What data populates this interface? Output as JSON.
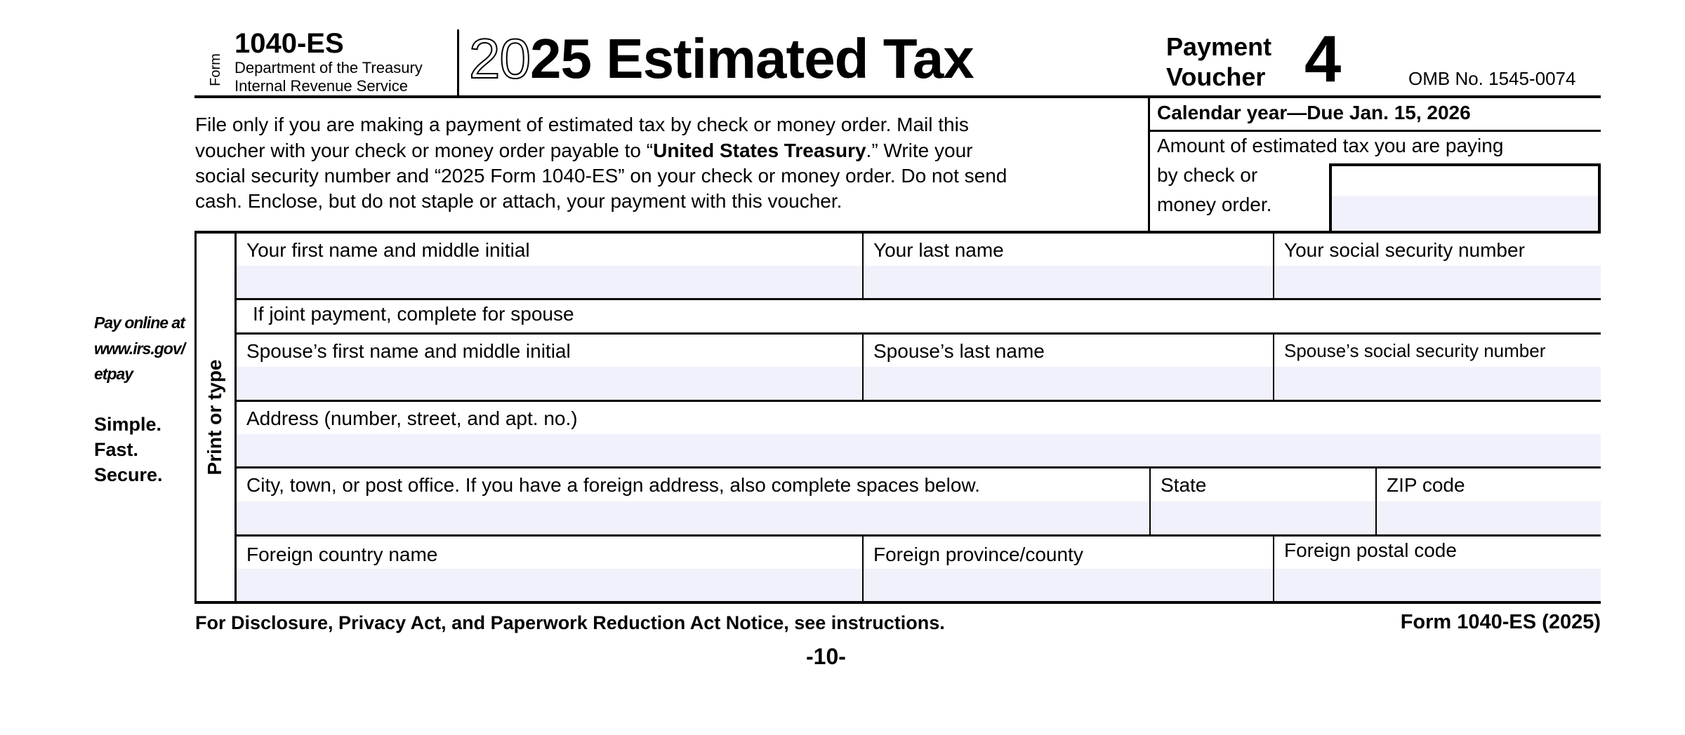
{
  "header": {
    "form_word": "Form",
    "form_number": "1040-ES",
    "department": "Department of the Treasury",
    "agency": "Internal Revenue Service",
    "title_year_outline": "20",
    "title_year_bold": "25",
    "title_text": "Estimated Tax",
    "voucher_line1": "Payment",
    "voucher_line2": "Voucher",
    "voucher_number": "4",
    "omb": "OMB No. 1545-0074"
  },
  "instructions": {
    "line1": "File only if you are making a payment of estimated tax by check or money order. Mail this",
    "line2_pre": "voucher with your check or money order payable to “",
    "line2_bold": "United States Treasury",
    "line2_post": ".” Write your",
    "line3": "social security number and “2025 Form 1040-ES” on your check or money order. Do not send",
    "line4": "cash. Enclose, but do not staple or attach, your payment with this voucher."
  },
  "due": {
    "calendar_year": "Calendar year—Due Jan. 15, 2026",
    "amount_line1": "Amount of estimated tax you are paying",
    "amount_line2": "by check or",
    "amount_line3": "money order.",
    "amount_value": ""
  },
  "sidebar": {
    "pay_online_1": "Pay online at",
    "pay_online_2": "www.irs.gov/",
    "pay_online_3": "etpay",
    "simple": "Simple.",
    "fast": "Fast.",
    "secure": "Secure.",
    "print_or_type": "Print or type"
  },
  "fields": {
    "first_name": {
      "label": "Your first name and middle initial",
      "value": ""
    },
    "last_name": {
      "label": "Your last name",
      "value": ""
    },
    "ssn": {
      "label": "Your social security number",
      "value": ""
    },
    "joint_note": "If joint payment, complete for spouse",
    "spouse_first_name": {
      "label": "Spouse’s first name and middle initial",
      "value": ""
    },
    "spouse_last_name": {
      "label": "Spouse’s last name",
      "value": ""
    },
    "spouse_ssn": {
      "label": "Spouse’s social security number",
      "value": ""
    },
    "address": {
      "label": "Address (number, street, and apt. no.)",
      "value": ""
    },
    "city": {
      "label": "City, town, or post office. If you have a foreign address, also complete spaces below.",
      "value": ""
    },
    "state": {
      "label": "State",
      "value": ""
    },
    "zip": {
      "label": "ZIP code",
      "value": ""
    },
    "foreign_country": {
      "label": "Foreign country name",
      "value": ""
    },
    "foreign_province": {
      "label": "Foreign province/county",
      "value": ""
    },
    "foreign_postal": {
      "label": "Foreign postal code",
      "value": ""
    }
  },
  "footer": {
    "notice": "For Disclosure, Privacy Act, and Paperwork Reduction Act Notice, see instructions.",
    "form_id": "Form 1040-ES (2025)",
    "page": "-10-"
  },
  "colors": {
    "field_fill": "#f1f1fb",
    "ink": "#000000"
  }
}
